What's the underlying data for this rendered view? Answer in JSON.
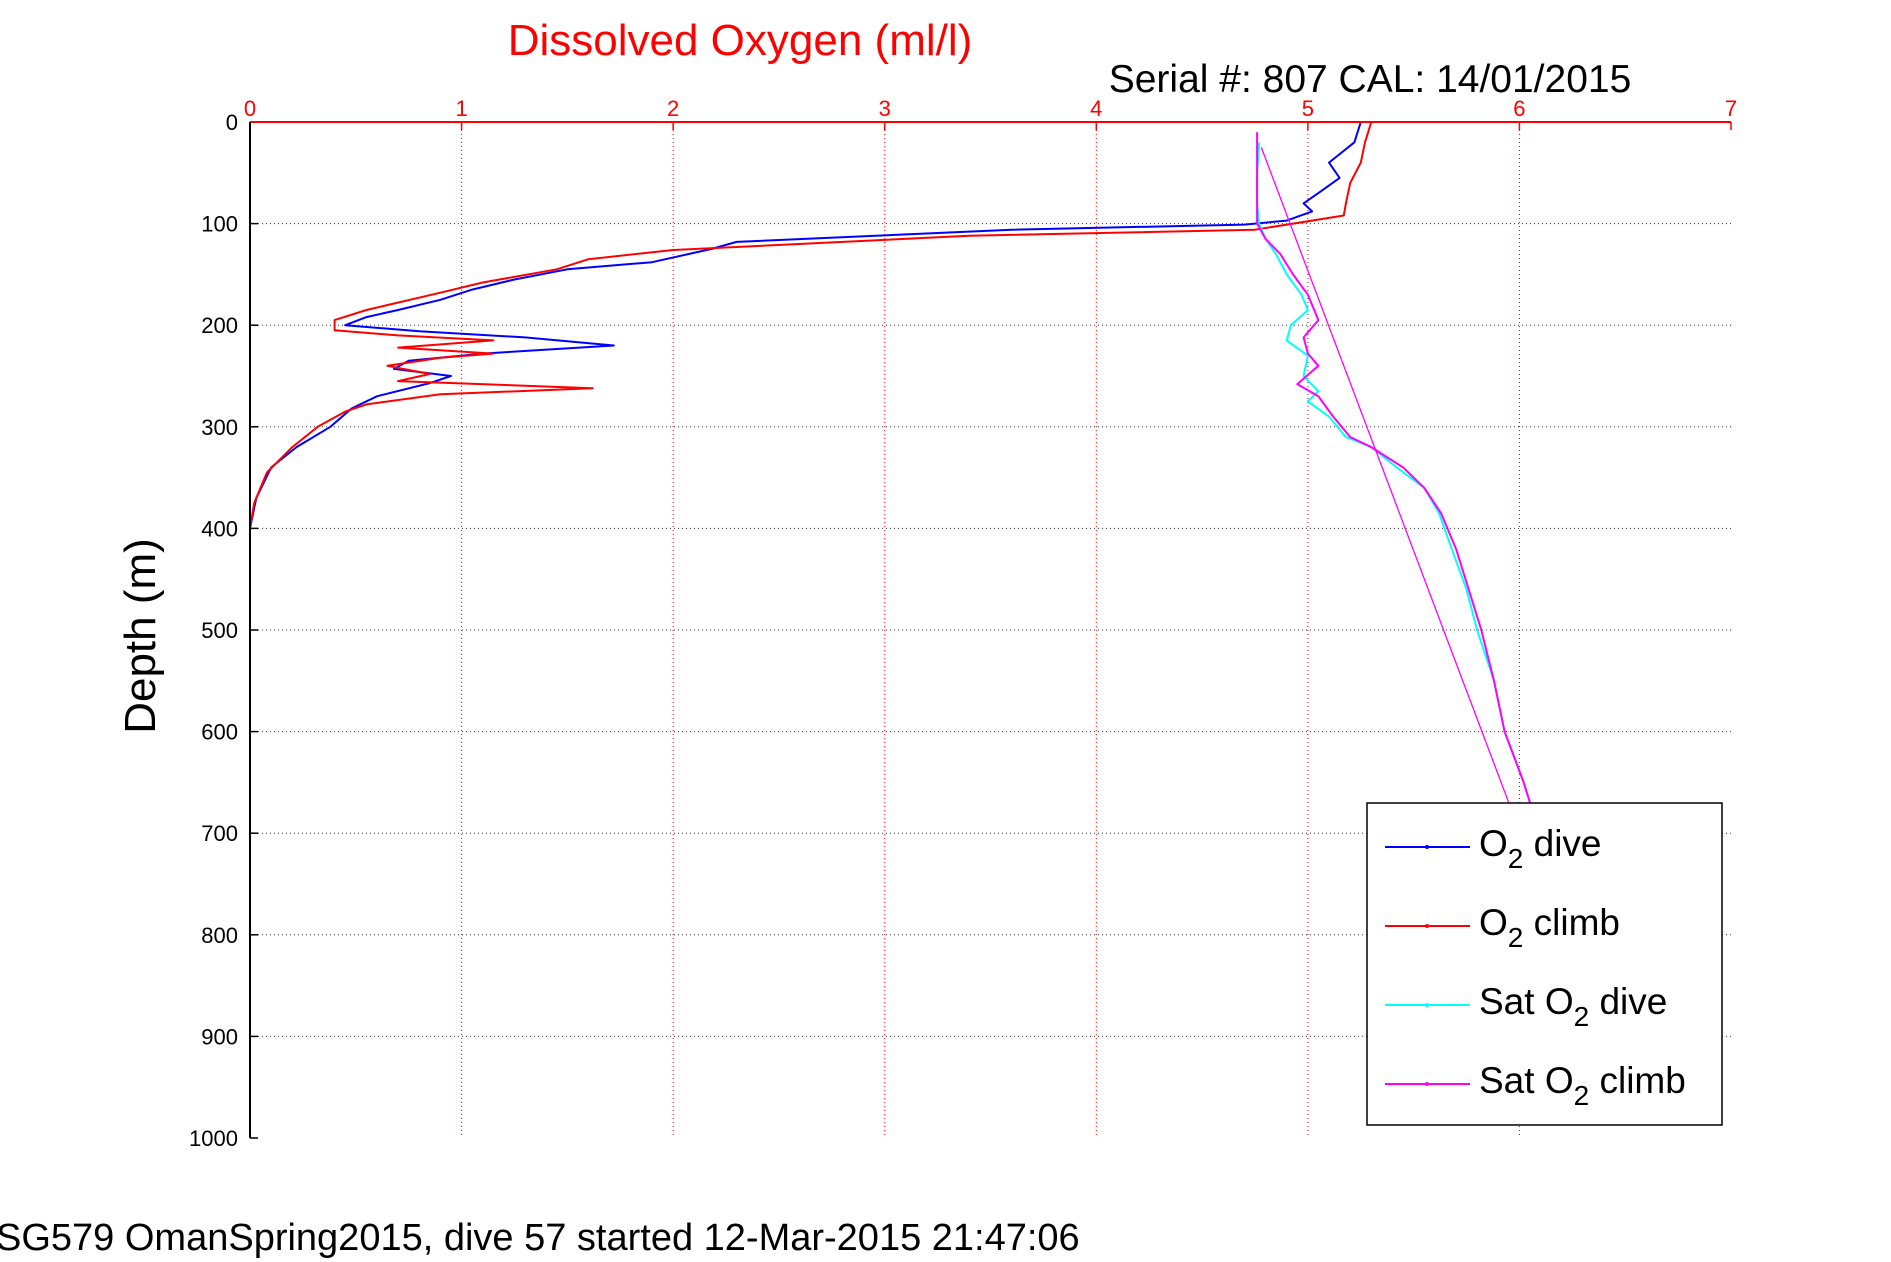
{
  "figure": {
    "title": "Dissolved Oxygen (ml/l)",
    "serial_text": "Serial #: 807  CAL: 14/01/2015",
    "footer": "SG579 OmanSpring2015, dive 57 started 12-Mar-2015 21:47:06"
  },
  "chart_data": {
    "type": "line",
    "title": "Dissolved Oxygen (ml/l)",
    "xlabel": "",
    "ylabel": "Depth (m)",
    "xlim": [
      0,
      7
    ],
    "ylim": [
      0,
      1000
    ],
    "y_reversed": true,
    "x_axis_position": "top",
    "xticks": [
      "0",
      "1",
      "2",
      "3",
      "4",
      "5",
      "6",
      "7"
    ],
    "yticks": [
      "0",
      "100",
      "200",
      "300",
      "400",
      "500",
      "600",
      "700",
      "800",
      "900",
      "1000"
    ],
    "grid": true,
    "legend_position": "bottom-right",
    "colors": {
      "title": "#ff0000",
      "x_ticks": "#ff0000",
      "grid": "#333333",
      "x_grid": "#ff0000"
    },
    "series": [
      {
        "name": "O2 dive",
        "color": "#0000ff",
        "points": [
          [
            5.25,
            0
          ],
          [
            5.22,
            20
          ],
          [
            5.1,
            40
          ],
          [
            5.15,
            55
          ],
          [
            5.05,
            70
          ],
          [
            4.98,
            80
          ],
          [
            5.02,
            88
          ],
          [
            4.9,
            97
          ],
          [
            4.7,
            101
          ],
          [
            3.6,
            106
          ],
          [
            2.3,
            118
          ],
          [
            2.18,
            125
          ],
          [
            1.9,
            138
          ],
          [
            1.5,
            145
          ],
          [
            1.25,
            155
          ],
          [
            1.05,
            165
          ],
          [
            0.9,
            175
          ],
          [
            0.7,
            185
          ],
          [
            0.55,
            192
          ],
          [
            0.45,
            200
          ],
          [
            0.8,
            206
          ],
          [
            1.3,
            212
          ],
          [
            1.72,
            220
          ],
          [
            1.1,
            228
          ],
          [
            0.75,
            235
          ],
          [
            0.68,
            243
          ],
          [
            0.95,
            250
          ],
          [
            0.85,
            257
          ],
          [
            0.6,
            270
          ],
          [
            0.48,
            282
          ],
          [
            0.38,
            300
          ],
          [
            0.22,
            320
          ],
          [
            0.1,
            340
          ],
          [
            0.03,
            370
          ],
          [
            0.0,
            400
          ],
          [
            0.0,
            455
          ]
        ]
      },
      {
        "name": "O2 climb",
        "color": "#ff0000",
        "points": [
          [
            5.3,
            0
          ],
          [
            5.27,
            20
          ],
          [
            5.25,
            40
          ],
          [
            5.2,
            60
          ],
          [
            5.18,
            80
          ],
          [
            5.17,
            92
          ],
          [
            4.75,
            106
          ],
          [
            3.4,
            112
          ],
          [
            2.0,
            126
          ],
          [
            1.6,
            135
          ],
          [
            1.45,
            145
          ],
          [
            1.1,
            158
          ],
          [
            0.9,
            168
          ],
          [
            0.55,
            185
          ],
          [
            0.4,
            195
          ],
          [
            0.4,
            205
          ],
          [
            0.7,
            210
          ],
          [
            1.15,
            215
          ],
          [
            0.7,
            222
          ],
          [
            1.15,
            228
          ],
          [
            0.9,
            232
          ],
          [
            0.65,
            240
          ],
          [
            0.85,
            248
          ],
          [
            0.7,
            255
          ],
          [
            1.62,
            262
          ],
          [
            0.9,
            268
          ],
          [
            0.55,
            278
          ],
          [
            0.45,
            285
          ],
          [
            0.32,
            300
          ],
          [
            0.2,
            320
          ],
          [
            0.08,
            345
          ],
          [
            0.02,
            375
          ],
          [
            0.0,
            400
          ]
        ]
      },
      {
        "name": "Sat O2 dive",
        "color": "#00ffff",
        "points": [
          [
            4.77,
            20
          ],
          [
            4.76,
            50
          ],
          [
            4.76,
            80
          ],
          [
            4.77,
            100
          ],
          [
            4.8,
            115
          ],
          [
            4.85,
            130
          ],
          [
            4.9,
            150
          ],
          [
            4.97,
            170
          ],
          [
            5.0,
            185
          ],
          [
            4.92,
            200
          ],
          [
            4.9,
            215
          ],
          [
            5.0,
            230
          ],
          [
            4.98,
            250
          ],
          [
            5.05,
            265
          ],
          [
            5.0,
            275
          ],
          [
            5.1,
            290
          ],
          [
            5.18,
            310
          ],
          [
            5.3,
            320
          ],
          [
            5.42,
            340
          ],
          [
            5.55,
            360
          ],
          [
            5.62,
            385
          ],
          [
            5.68,
            420
          ],
          [
            5.75,
            460
          ],
          [
            5.8,
            500
          ],
          [
            5.88,
            550
          ],
          [
            5.93,
            600
          ],
          [
            6.02,
            650
          ],
          [
            6.05,
            670
          ]
        ]
      },
      {
        "name": "Sat O2 climb",
        "color": "#ff00ff",
        "points": [
          [
            4.76,
            10
          ],
          [
            4.76,
            50
          ],
          [
            4.76,
            80
          ],
          [
            4.76,
            100
          ],
          [
            4.8,
            115
          ],
          [
            4.87,
            130
          ],
          [
            4.93,
            150
          ],
          [
            5.0,
            170
          ],
          [
            5.05,
            195
          ],
          [
            4.98,
            212
          ],
          [
            5.0,
            228
          ],
          [
            5.05,
            240
          ],
          [
            4.95,
            258
          ],
          [
            5.05,
            270
          ],
          [
            5.12,
            290
          ],
          [
            5.2,
            310
          ],
          [
            5.3,
            320
          ],
          [
            5.45,
            340
          ],
          [
            5.55,
            360
          ],
          [
            5.63,
            385
          ],
          [
            5.7,
            420
          ],
          [
            5.76,
            460
          ],
          [
            5.82,
            500
          ],
          [
            5.88,
            550
          ],
          [
            5.93,
            600
          ],
          [
            6.02,
            650
          ],
          [
            6.05,
            670
          ]
        ]
      },
      {
        "name": "",
        "color": "#ff00ff",
        "thin": true,
        "points": [
          [
            4.78,
            25
          ],
          [
            5.95,
            670
          ]
        ]
      }
    ]
  }
}
